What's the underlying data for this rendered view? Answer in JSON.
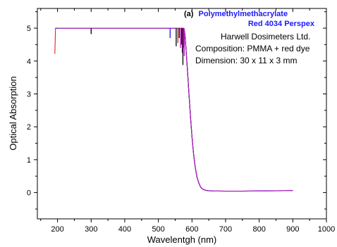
{
  "chart_data": {
    "type": "line",
    "xlabel": "Wavelentgh (nm)",
    "ylabel": "Optical Absorption",
    "xlim": [
      140,
      1000
    ],
    "ylim": [
      -0.8,
      5.6
    ],
    "x_ticks": [
      200,
      300,
      400,
      500,
      600,
      700,
      800,
      900,
      1000
    ],
    "y_ticks": [
      0,
      1,
      2,
      3,
      4,
      5
    ],
    "grid": false,
    "annotation": {
      "prefix": "(a)",
      "title_line1": "Polymethylmethacrylate",
      "title_line2": "Red 4034 Perspex",
      "lines": [
        "Harwell Dosimeters Ltd.",
        "Composition: PMMA + red dye",
        "Dimension: 30 x 11 x 3 mm"
      ],
      "title_color": "#1a1aff"
    },
    "series": [
      {
        "color": "#e0202a",
        "x": [
          192,
          194,
          200,
          300,
          500,
          560,
          570,
          575,
          578,
          580,
          582,
          585,
          588,
          591,
          594,
          597,
          600,
          605,
          610,
          615,
          620,
          625,
          630,
          635,
          640,
          650,
          660,
          700,
          750,
          800,
          850,
          900
        ],
        "y": [
          4.22,
          5.0,
          5.0,
          5.0,
          5.0,
          5.0,
          5.0,
          5.0,
          4.9,
          4.7,
          4.4,
          3.95,
          3.5,
          3.0,
          2.55,
          2.1,
          1.7,
          1.15,
          0.75,
          0.47,
          0.3,
          0.18,
          0.12,
          0.09,
          0.07,
          0.055,
          0.05,
          0.045,
          0.045,
          0.05,
          0.055,
          0.06
        ]
      },
      {
        "color": "#1a1aff",
        "x": [
          194,
          200,
          300,
          500,
          560,
          570,
          575,
          578,
          580,
          582,
          585,
          588,
          591,
          594,
          597,
          600,
          605,
          610,
          615,
          620,
          625,
          630,
          635,
          640,
          650,
          660,
          700,
          750,
          800,
          850,
          900
        ],
        "y": [
          5.0,
          5.0,
          5.0,
          5.0,
          5.0,
          5.0,
          5.0,
          4.9,
          4.7,
          4.4,
          3.95,
          3.5,
          3.0,
          2.55,
          2.1,
          1.7,
          1.15,
          0.75,
          0.47,
          0.3,
          0.18,
          0.12,
          0.09,
          0.07,
          0.055,
          0.05,
          0.045,
          0.045,
          0.05,
          0.055,
          0.06
        ]
      },
      {
        "color": "#000000",
        "x": [
          200,
          300,
          500,
          560,
          570,
          575,
          578,
          580,
          582,
          585,
          588,
          591,
          594,
          597,
          600,
          605,
          610,
          615,
          620,
          625,
          630,
          635,
          640,
          650
        ],
        "y": [
          5.0,
          5.0,
          5.0,
          5.0,
          5.0,
          5.0,
          4.9,
          4.7,
          4.4,
          3.95,
          3.5,
          3.0,
          2.55,
          2.1,
          1.7,
          1.15,
          0.75,
          0.47,
          0.3,
          0.18,
          0.12,
          0.09,
          0.07,
          0.055
        ]
      },
      {
        "color": "#b020c0",
        "x": [
          200,
          300,
          500,
          560,
          570,
          575,
          578,
          580,
          582,
          585,
          588,
          591,
          594,
          597,
          600,
          605,
          610,
          615,
          620,
          625,
          630,
          635,
          640,
          650,
          660,
          700,
          750,
          800,
          850,
          900
        ],
        "y": [
          5.0,
          5.0,
          5.0,
          5.0,
          5.0,
          5.0,
          4.9,
          4.7,
          4.4,
          3.95,
          3.5,
          3.0,
          2.55,
          2.1,
          1.7,
          1.15,
          0.75,
          0.47,
          0.3,
          0.18,
          0.12,
          0.09,
          0.07,
          0.055,
          0.05,
          0.045,
          0.045,
          0.05,
          0.055,
          0.06
        ]
      }
    ],
    "noise_spikes": [
      {
        "color": "#000000",
        "x": 300,
        "y_top": 5.0,
        "y_bottom": 4.82
      },
      {
        "color": "#1a1aff",
        "x": 535,
        "y_top": 5.0,
        "y_bottom": 4.7
      },
      {
        "color": "#000000",
        "x": 553,
        "y_top": 5.0,
        "y_bottom": 4.45
      },
      {
        "color": "#e0202a",
        "x": 558,
        "y_top": 5.0,
        "y_bottom": 4.55
      },
      {
        "color": "#000000",
        "x": 562,
        "y_top": 5.0,
        "y_bottom": 4.7
      },
      {
        "color": "#b020c0",
        "x": 566,
        "y_top": 5.0,
        "y_bottom": 4.4
      },
      {
        "color": "#000000",
        "x": 569,
        "y_top": 5.0,
        "y_bottom": 4.5
      },
      {
        "color": "#b020c0",
        "x": 571,
        "y_top": 5.0,
        "y_bottom": 4.25
      },
      {
        "color": "#000000",
        "x": 573,
        "y_top": 5.0,
        "y_bottom": 3.88
      },
      {
        "color": "#e0202a",
        "x": 575,
        "y_top": 5.0,
        "y_bottom": 4.4
      },
      {
        "color": "#b020c0",
        "x": 577,
        "y_top": 5.0,
        "y_bottom": 4.15
      }
    ]
  }
}
